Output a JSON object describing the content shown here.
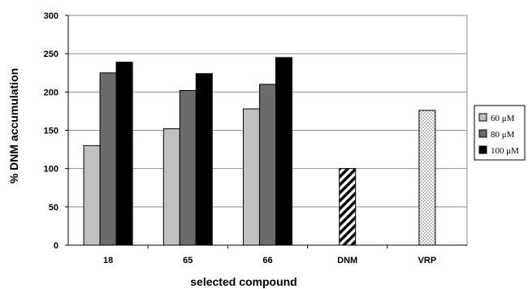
{
  "chart_data": {
    "type": "bar",
    "xlabel": "selected compound",
    "ylabel": "% DNM accumulation",
    "ylim": [
      0,
      300
    ],
    "yticks": [
      0,
      50,
      100,
      150,
      200,
      250,
      300
    ],
    "grid": true,
    "legend_position": "right",
    "categories": [
      "18",
      "65",
      "66",
      "DNM",
      "VRP"
    ],
    "series": [
      {
        "name": "60 μM",
        "color": "#c0c0c0",
        "values": [
          130,
          152,
          178,
          null,
          null
        ]
      },
      {
        "name": "80 μM",
        "color": "#6b6b6b",
        "values": [
          225,
          202,
          210,
          null,
          null
        ]
      },
      {
        "name": "100 μM",
        "color": "#000000",
        "values": [
          239,
          224,
          245,
          null,
          null
        ]
      }
    ],
    "controls": [
      {
        "category": "DNM",
        "value": 100,
        "pattern": "diagonal-hatch"
      },
      {
        "category": "VRP",
        "value": 176,
        "pattern": "dots"
      }
    ]
  }
}
